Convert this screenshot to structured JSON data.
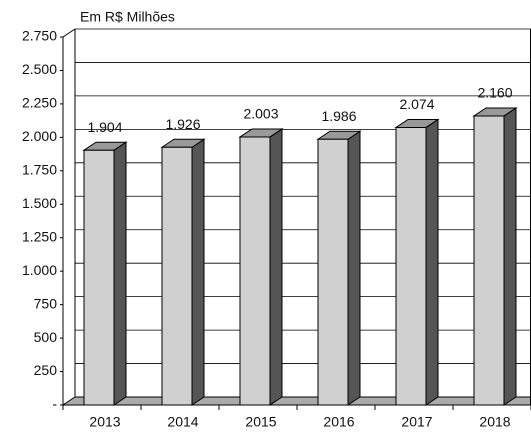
{
  "chart_data": {
    "type": "bar3d",
    "title": "Em R$ Milhões",
    "categories": [
      "2013",
      "2014",
      "2015",
      "2016",
      "2017",
      "2018"
    ],
    "values": [
      1904,
      1926,
      2003,
      1986,
      2074,
      2160
    ],
    "value_labels": [
      "1.904",
      "1.926",
      "2.003",
      "1.986",
      "2.074",
      "2.160"
    ],
    "color": "#d0d0d0",
    "ylim": [
      0,
      2750
    ],
    "yticks": [
      {
        "value": 0,
        "label": "-"
      },
      250,
      500,
      750,
      {
        "value": 1000,
        "label": "1.000"
      },
      {
        "value": 1250,
        "label": "1.250"
      },
      {
        "value": 1500,
        "label": "1.500"
      },
      {
        "value": 1750,
        "label": "1.750"
      },
      {
        "value": 2000,
        "label": "2.000"
      },
      {
        "value": 2250,
        "label": "2.250"
      },
      {
        "value": 2500,
        "label": "2.500"
      },
      {
        "value": 2750,
        "label": "2.750"
      }
    ],
    "grid": true
  }
}
